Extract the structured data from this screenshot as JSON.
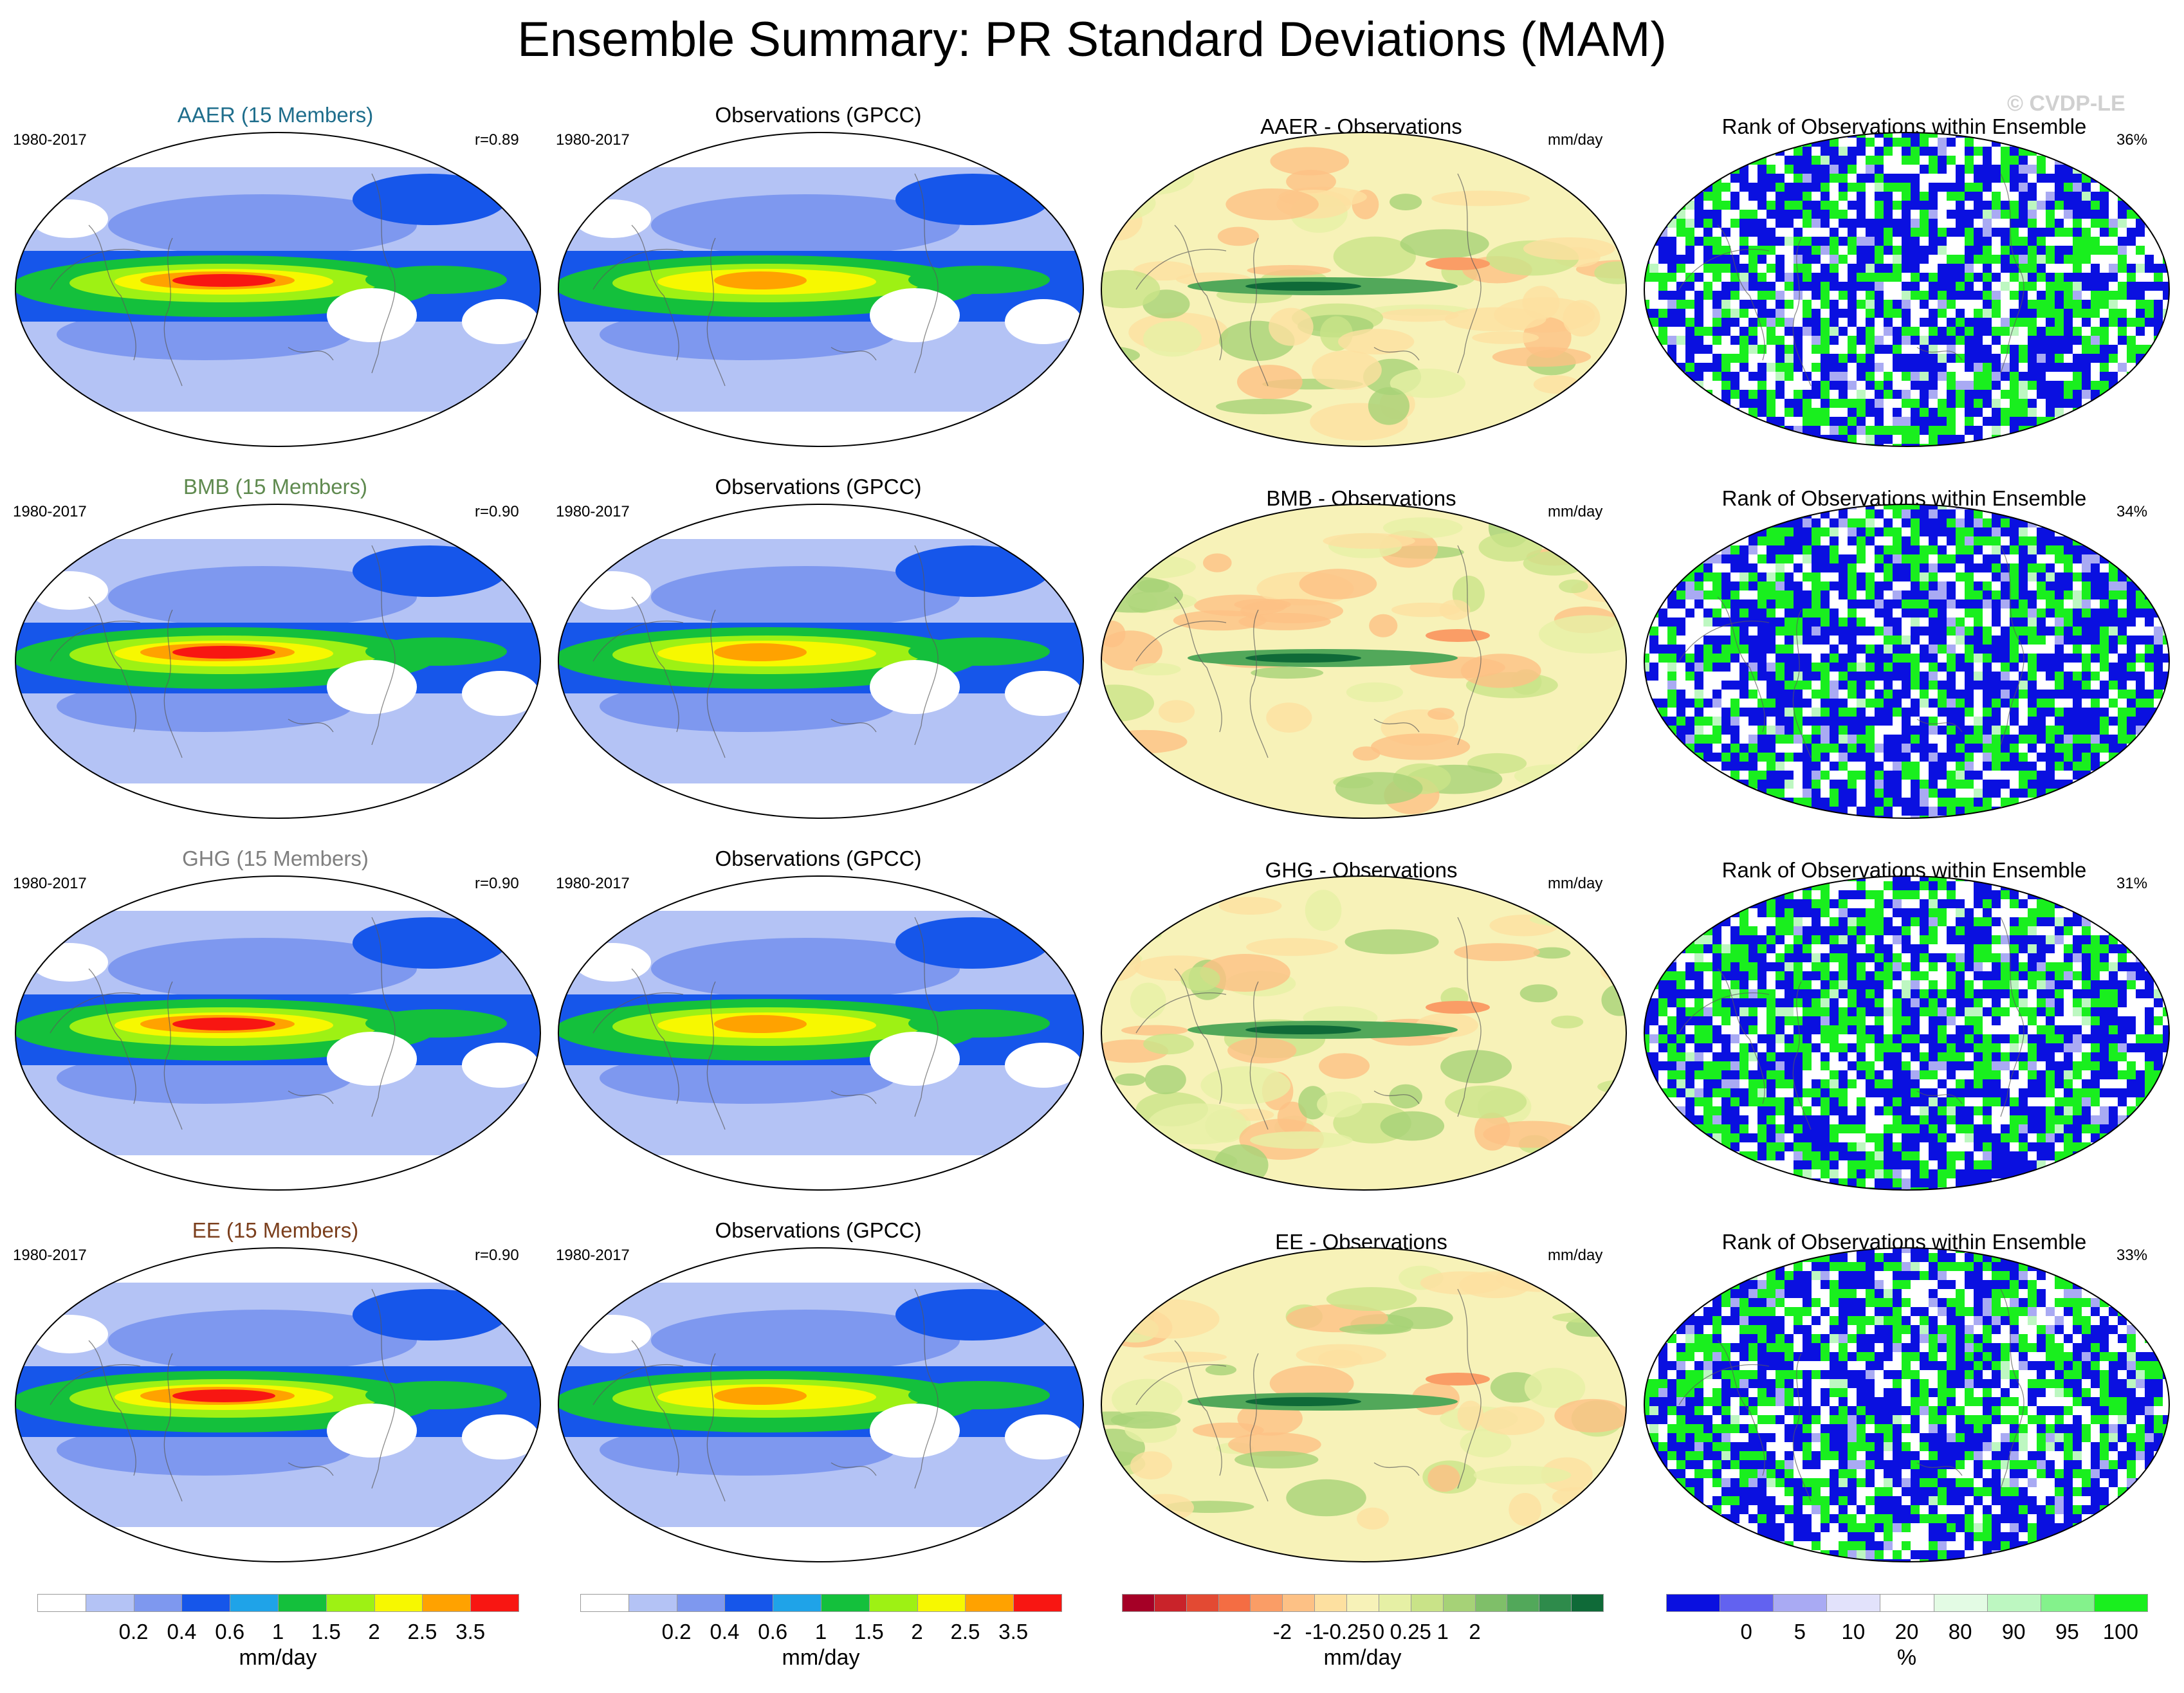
{
  "title": "Ensemble Summary: PR Standard Deviations (MAM)",
  "watermark": "© CVDP-LE",
  "rows": [
    {
      "ens_title": "AAER (15 Members)",
      "ens_color": "#1f6e8c",
      "period": "1980-2017",
      "r": "r=0.89",
      "obs_title": "Observations (GPCC)",
      "obs_period": "1980-2017",
      "diff_title": "AAER - Observations",
      "diff_unit": "mm/day",
      "rank_title": "Rank of Observations within Ensemble",
      "rank_pct": "36%"
    },
    {
      "ens_title": "BMB (15 Members)",
      "ens_color": "#5f8a4f",
      "period": "1980-2017",
      "r": "r=0.90",
      "obs_title": "Observations (GPCC)",
      "obs_period": "1980-2017",
      "diff_title": "BMB - Observations",
      "diff_unit": "mm/day",
      "rank_title": "Rank of Observations within Ensemble",
      "rank_pct": "34%"
    },
    {
      "ens_title": "GHG (15 Members)",
      "ens_color": "#7f7f7f",
      "period": "1980-2017",
      "r": "r=0.90",
      "obs_title": "Observations (GPCC)",
      "obs_period": "1980-2017",
      "diff_title": "GHG - Observations",
      "diff_unit": "mm/day",
      "rank_title": "Rank of Observations within Ensemble",
      "rank_pct": "31%"
    },
    {
      "ens_title": "EE (15 Members)",
      "ens_color": "#7b3f1d",
      "period": "1980-2017",
      "r": "r=0.90",
      "obs_title": "Observations (GPCC)",
      "obs_period": "1980-2017",
      "diff_title": "EE - Observations",
      "diff_unit": "mm/day",
      "rank_title": "Rank of Observations within Ensemble",
      "rank_pct": "33%"
    }
  ],
  "colorbars": {
    "stddev": {
      "colors": [
        "#ffffff",
        "#b4c3f5",
        "#7e98ef",
        "#1656ea",
        "#1fa3e8",
        "#14c03c",
        "#9ef114",
        "#f7f800",
        "#ffa200",
        "#f81612"
      ],
      "ticks": [
        "0.2",
        "0.4",
        "0.6",
        "1",
        "1.5",
        "2",
        "2.5",
        "3.5"
      ],
      "unit": "mm/day"
    },
    "diff": {
      "colors": [
        "#a50026",
        "#c9232a",
        "#e34a33",
        "#f46d43",
        "#fa9d66",
        "#fdc185",
        "#fde0a0",
        "#f7f2b8",
        "#e6f0a5",
        "#c9e388",
        "#a6d277",
        "#7fbf69",
        "#52a85a",
        "#2e8b4b",
        "#0f6a38"
      ],
      "ticks": [
        "-2",
        "-1",
        "-0.25",
        "0",
        "0.25",
        "1",
        "2"
      ],
      "unit": "mm/day"
    },
    "rank": {
      "colors": [
        "#0a10e0",
        "#6262f0",
        "#a9aaf3",
        "#e2e2fb",
        "#ffffff",
        "#e3fbe4",
        "#bdf7c1",
        "#84f28c",
        "#19ef1e"
      ],
      "ticks": [
        "0",
        "5",
        "10",
        "20",
        "80",
        "90",
        "95",
        "100"
      ],
      "unit": "%"
    }
  }
}
